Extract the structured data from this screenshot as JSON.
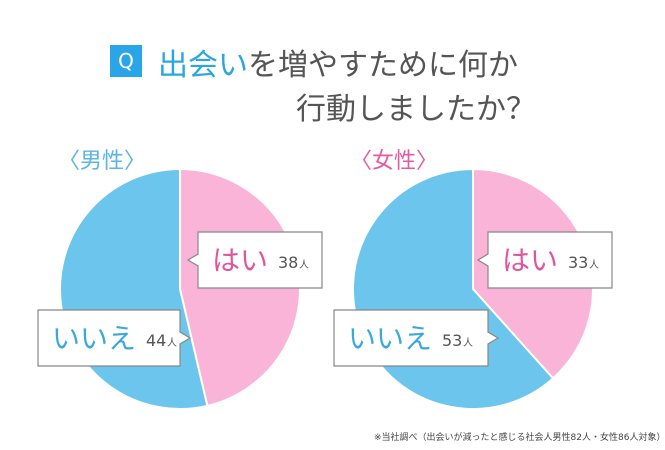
{
  "title": {
    "q": "Q",
    "highlight": "出会い",
    "rest": "を増やすために何か",
    "line2": "行動しましたか？"
  },
  "colors": {
    "yes": "#f9b4d8",
    "no": "#6cc5ec",
    "yes_text": "#e0559c",
    "no_text": "#3aa8dc",
    "male_label": "#5ab4e4",
    "female_label": "#e45c9e"
  },
  "chart_data": [
    {
      "type": "pie",
      "title": "〈男性〉",
      "unit": "人",
      "slices": [
        {
          "label": "はい",
          "value": 38
        },
        {
          "label": "いいえ",
          "value": 44
        }
      ]
    },
    {
      "type": "pie",
      "title": "〈女性〉",
      "unit": "人",
      "slices": [
        {
          "label": "はい",
          "value": 33
        },
        {
          "label": "いいえ",
          "value": 53
        }
      ]
    }
  ],
  "footnote": "※当社調べ（出会いが減ったと感じる社会人男性82人・女性86人対象）"
}
